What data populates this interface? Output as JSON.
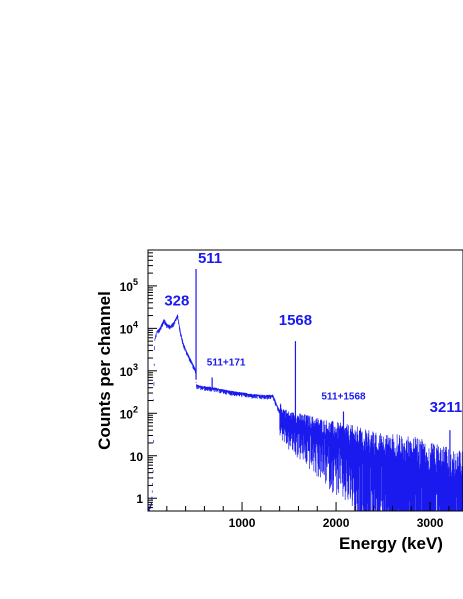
{
  "chart_data": {
    "type": "line",
    "xlabel": "Energy (keV)",
    "ylabel": "Counts per channel",
    "xlim": [
      0,
      3350
    ],
    "ylim": [
      0.5,
      700000
    ],
    "yscale": "log",
    "grid": false,
    "x_ticks": [
      {
        "value": 1000,
        "label": "1000"
      },
      {
        "value": 2000,
        "label": "2000"
      },
      {
        "value": 3000,
        "label": "3000"
      }
    ],
    "y_ticks": [
      {
        "value": 1,
        "base": "1",
        "exp": ""
      },
      {
        "value": 10,
        "base": "10",
        "exp": ""
      },
      {
        "value": 100,
        "base": "10",
        "exp": "2"
      },
      {
        "value": 1000,
        "base": "10",
        "exp": "3"
      },
      {
        "value": 10000,
        "base": "10",
        "exp": "4"
      },
      {
        "value": 100000,
        "base": "10",
        "exp": "5"
      }
    ],
    "series": [
      {
        "color": "#1a1aee",
        "envelope": [
          [
            20,
            0.6
          ],
          [
            40,
            0.8
          ],
          [
            55,
            5
          ],
          [
            60,
            200
          ],
          [
            70,
            5000
          ],
          [
            90,
            8000
          ],
          [
            130,
            10000
          ],
          [
            170,
            16000
          ],
          [
            200,
            12000
          ],
          [
            240,
            11000
          ],
          [
            280,
            14000
          ],
          [
            315,
            20000
          ],
          [
            345,
            8000
          ],
          [
            380,
            4000
          ],
          [
            420,
            2500
          ],
          [
            470,
            1500
          ],
          [
            505,
            1000
          ],
          [
            515,
            450
          ],
          [
            560,
            420
          ],
          [
            700,
            380
          ],
          [
            900,
            310
          ],
          [
            1100,
            270
          ],
          [
            1250,
            250
          ],
          [
            1330,
            260
          ],
          [
            1370,
            150
          ],
          [
            1420,
            90
          ],
          [
            1500,
            60
          ],
          [
            1600,
            50
          ],
          [
            1700,
            40
          ],
          [
            1800,
            32
          ],
          [
            1900,
            25
          ],
          [
            2000,
            20
          ],
          [
            2100,
            16
          ],
          [
            2200,
            13
          ],
          [
            2300,
            10
          ],
          [
            2400,
            8
          ],
          [
            2500,
            6.5
          ],
          [
            2600,
            5.5
          ],
          [
            2700,
            4.5
          ],
          [
            2800,
            3.8
          ],
          [
            2900,
            3.2
          ],
          [
            3000,
            2.7
          ],
          [
            3100,
            2.3
          ],
          [
            3200,
            2.0
          ],
          [
            3300,
            1.8
          ],
          [
            3350,
            1.7
          ]
        ],
        "peaks": [
          {
            "x": 511,
            "y": 250000
          },
          {
            "x": 682,
            "y": 700
          },
          {
            "x": 1568,
            "y": 5000
          },
          {
            "x": 2079,
            "y": 110
          },
          {
            "x": 3211,
            "y": 40
          }
        ]
      }
    ],
    "annotations": [
      {
        "text": "511",
        "x": 511,
        "y": 250000,
        "size": "big"
      },
      {
        "text": "328",
        "x": 328,
        "y": 20000,
        "size": "big"
      },
      {
        "text": "511+171",
        "x": 682,
        "y": 700,
        "size": "small"
      },
      {
        "text": "1568",
        "x": 1568,
        "y": 5000,
        "size": "big"
      },
      {
        "text": "511+1568",
        "x": 2079,
        "y": 110,
        "size": "small"
      },
      {
        "text": "3211",
        "x": 3211,
        "y": 40,
        "size": "big"
      }
    ]
  }
}
